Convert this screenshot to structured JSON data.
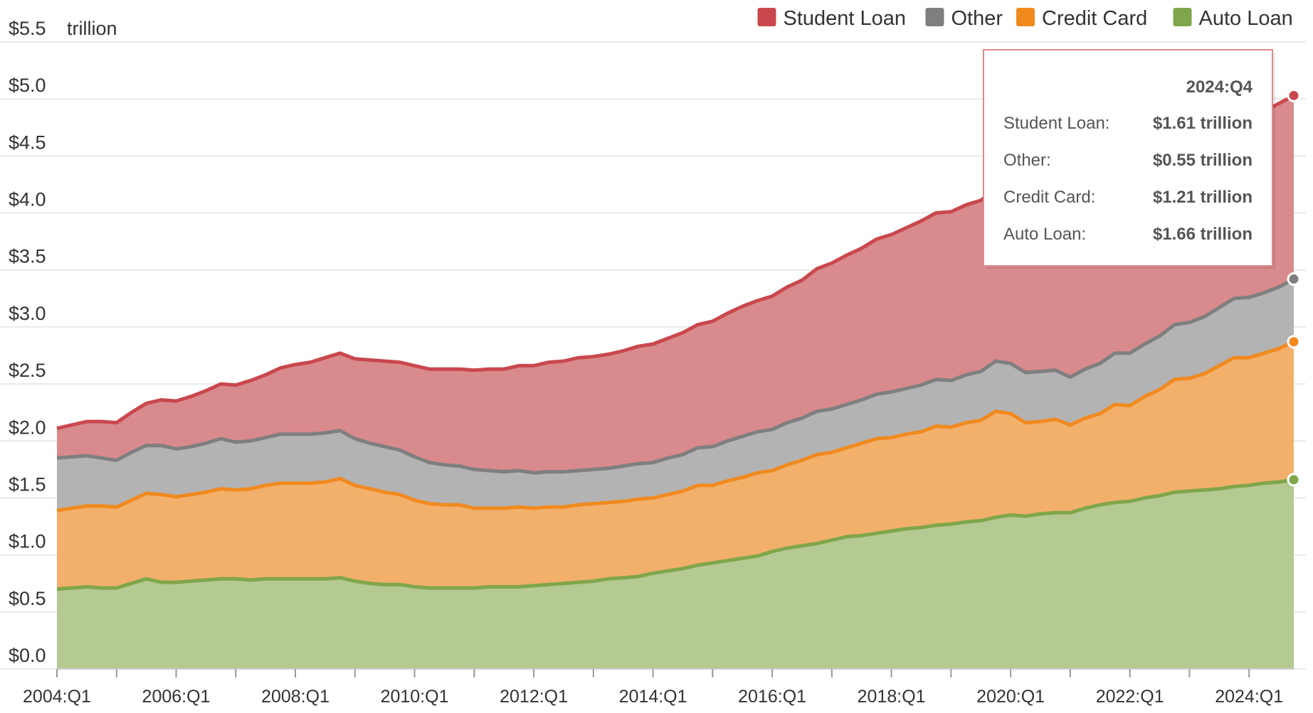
{
  "chart_data": {
    "type": "stacked_area",
    "y_unit": "trillion",
    "categories": [
      "2004:Q1",
      null,
      null,
      null,
      null,
      null,
      null,
      null,
      "2006:Q1",
      null,
      null,
      null,
      null,
      null,
      null,
      null,
      "2008:Q1",
      null,
      null,
      null,
      null,
      null,
      null,
      null,
      "2010:Q1",
      null,
      null,
      null,
      null,
      null,
      null,
      null,
      "2012:Q1",
      null,
      null,
      null,
      null,
      null,
      null,
      null,
      "2014:Q1",
      null,
      null,
      null,
      null,
      null,
      null,
      null,
      "2016:Q1",
      null,
      null,
      null,
      null,
      null,
      null,
      null,
      "2018:Q1",
      null,
      null,
      null,
      null,
      null,
      null,
      null,
      "2020:Q1",
      null,
      null,
      null,
      null,
      null,
      null,
      null,
      "2022:Q1",
      null,
      null,
      null,
      null,
      null,
      null,
      null,
      "2024:Q1",
      null,
      null,
      null
    ],
    "series": [
      {
        "name": "Student Loan",
        "color": "#c9484d",
        "fill": "#d98a8d",
        "values": [
          0.26,
          0.28,
          0.3,
          0.32,
          0.33,
          0.35,
          0.37,
          0.4,
          0.42,
          0.44,
          0.46,
          0.48,
          0.5,
          0.53,
          0.55,
          0.58,
          0.61,
          0.63,
          0.66,
          0.68,
          0.7,
          0.73,
          0.75,
          0.77,
          0.8,
          0.82,
          0.84,
          0.85,
          0.87,
          0.89,
          0.9,
          0.92,
          0.94,
          0.96,
          0.97,
          0.99,
          0.99,
          1.0,
          1.01,
          1.03,
          1.04,
          1.05,
          1.07,
          1.08,
          1.1,
          1.12,
          1.14,
          1.15,
          1.17,
          1.19,
          1.21,
          1.25,
          1.28,
          1.31,
          1.33,
          1.36,
          1.38,
          1.41,
          1.44,
          1.46,
          1.48,
          1.49,
          1.5,
          1.51,
          1.51,
          1.53,
          1.54,
          1.55,
          1.56,
          1.57,
          1.58,
          1.58,
          1.59,
          1.59,
          1.57,
          1.6,
          1.6,
          1.57,
          1.6,
          1.6,
          1.6,
          1.59,
          1.61,
          1.61
        ]
      },
      {
        "name": "Other",
        "color": "#7f7f7f",
        "fill": "#b3b3b3",
        "values": [
          0.46,
          0.45,
          0.44,
          0.42,
          0.41,
          0.42,
          0.42,
          0.43,
          0.42,
          0.42,
          0.43,
          0.44,
          0.42,
          0.42,
          0.42,
          0.43,
          0.43,
          0.43,
          0.43,
          0.42,
          0.41,
          0.4,
          0.4,
          0.39,
          0.38,
          0.36,
          0.35,
          0.34,
          0.34,
          0.33,
          0.32,
          0.32,
          0.31,
          0.31,
          0.31,
          0.3,
          0.3,
          0.3,
          0.31,
          0.31,
          0.31,
          0.32,
          0.32,
          0.33,
          0.34,
          0.35,
          0.36,
          0.36,
          0.36,
          0.37,
          0.37,
          0.38,
          0.38,
          0.38,
          0.38,
          0.39,
          0.4,
          0.4,
          0.41,
          0.41,
          0.41,
          0.42,
          0.43,
          0.44,
          0.44,
          0.44,
          0.44,
          0.43,
          0.42,
          0.43,
          0.44,
          0.45,
          0.46,
          0.46,
          0.47,
          0.48,
          0.49,
          0.5,
          0.51,
          0.52,
          0.53,
          0.53,
          0.54,
          0.55
        ]
      },
      {
        "name": "Credit Card",
        "color": "#f08a1f",
        "fill": "#f2b06b",
        "values": [
          0.69,
          0.7,
          0.71,
          0.72,
          0.71,
          0.73,
          0.75,
          0.77,
          0.75,
          0.76,
          0.77,
          0.79,
          0.78,
          0.8,
          0.82,
          0.84,
          0.84,
          0.84,
          0.85,
          0.87,
          0.84,
          0.83,
          0.81,
          0.79,
          0.76,
          0.74,
          0.73,
          0.73,
          0.7,
          0.69,
          0.69,
          0.7,
          0.68,
          0.68,
          0.67,
          0.68,
          0.68,
          0.67,
          0.67,
          0.68,
          0.66,
          0.67,
          0.68,
          0.7,
          0.68,
          0.7,
          0.71,
          0.73,
          0.71,
          0.73,
          0.75,
          0.78,
          0.77,
          0.78,
          0.81,
          0.83,
          0.82,
          0.83,
          0.84,
          0.87,
          0.85,
          0.87,
          0.88,
          0.93,
          0.89,
          0.82,
          0.81,
          0.82,
          0.77,
          0.79,
          0.8,
          0.86,
          0.84,
          0.89,
          0.93,
          0.99,
          0.99,
          1.02,
          1.08,
          1.13,
          1.12,
          1.14,
          1.17,
          1.21
        ]
      },
      {
        "name": "Auto Loan",
        "color": "#7fa64a",
        "fill": "#b5c993",
        "values": [
          0.7,
          0.71,
          0.72,
          0.71,
          0.71,
          0.75,
          0.79,
          0.76,
          0.76,
          0.77,
          0.78,
          0.79,
          0.79,
          0.78,
          0.79,
          0.79,
          0.79,
          0.79,
          0.79,
          0.8,
          0.77,
          0.75,
          0.74,
          0.74,
          0.72,
          0.71,
          0.71,
          0.71,
          0.71,
          0.72,
          0.72,
          0.72,
          0.73,
          0.74,
          0.75,
          0.76,
          0.77,
          0.79,
          0.8,
          0.81,
          0.84,
          0.86,
          0.88,
          0.91,
          0.93,
          0.95,
          0.97,
          0.99,
          1.03,
          1.06,
          1.08,
          1.1,
          1.13,
          1.16,
          1.17,
          1.19,
          1.21,
          1.23,
          1.24,
          1.26,
          1.27,
          1.29,
          1.3,
          1.33,
          1.35,
          1.34,
          1.36,
          1.37,
          1.37,
          1.41,
          1.44,
          1.46,
          1.47,
          1.5,
          1.52,
          1.55,
          1.56,
          1.57,
          1.58,
          1.6,
          1.61,
          1.63,
          1.64,
          1.66
        ]
      }
    ],
    "ylim": [
      0,
      5.5
    ],
    "yticks": [
      {
        "value": 0,
        "label": "$0.0"
      },
      {
        "value": 0.5,
        "label": "$0.5"
      },
      {
        "value": 1,
        "label": "$1.0"
      },
      {
        "value": 1.5,
        "label": "$1.5"
      },
      {
        "value": 2,
        "label": "$2.0"
      },
      {
        "value": 2.5,
        "label": "$2.5"
      },
      {
        "value": 3,
        "label": "$3.0"
      },
      {
        "value": 3.5,
        "label": "$3.5"
      },
      {
        "value": 4,
        "label": "$4.0"
      },
      {
        "value": 4.5,
        "label": "$4.5"
      },
      {
        "value": 5,
        "label": "$5.0"
      },
      {
        "value": 5.5,
        "label": "$5.5"
      }
    ],
    "grid": true,
    "legend": "top-right",
    "tooltip": {
      "title": "2024:Q4",
      "rows": [
        {
          "label": "Student Loan:",
          "value_label": "$1.61 trillion"
        },
        {
          "label": "Other:",
          "value_label": "$0.55 trillion"
        },
        {
          "label": "Credit Card:",
          "value_label": "$1.21 trillion"
        },
        {
          "label": "Auto Loan:",
          "value_label": "$1.66 trillion"
        }
      ]
    }
  }
}
